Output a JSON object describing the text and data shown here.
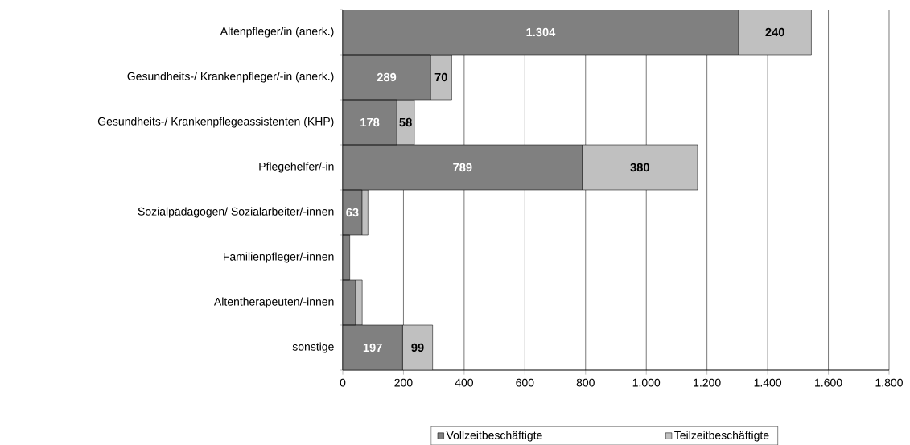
{
  "chart_data": {
    "type": "bar",
    "orientation": "horizontal",
    "stacked": true,
    "categories": [
      "Altenpfleger/in (anerk.)",
      "Gesundheits-/ Krankenpfleger/-in (anerk.)",
      "Gesundheits-/ Krankenpflegeassistenten (KHP)",
      "Pflegehelfer/-in",
      "Sozialpädagogen/    Sozialarbeiter/-innen",
      "Familienpfleger/-innen",
      "Altentherapeuten/-innen",
      "sonstige"
    ],
    "series": [
      {
        "name": "Vollzeitbeschäftigte",
        "color": "#808080",
        "values": [
          1304,
          289,
          178,
          789,
          63,
          23,
          42,
          197
        ],
        "value_labels": [
          "1.304",
          "289",
          "178",
          "789",
          "63",
          null,
          null,
          "197"
        ]
      },
      {
        "name": "Teilzeitbeschäftigte",
        "color": "#c0c0c0",
        "values": [
          240,
          70,
          58,
          380,
          20,
          null,
          22,
          99
        ],
        "value_labels": [
          "240",
          "70",
          "58",
          "380",
          null,
          null,
          null,
          "99"
        ]
      }
    ],
    "xlim": [
      0,
      1800
    ],
    "xticks": [
      0,
      200,
      400,
      600,
      800,
      {
        "value": 1000,
        "label": "1.000"
      },
      {
        "value": 1200,
        "label": "1.200"
      },
      {
        "value": 1400,
        "label": "1.400"
      },
      {
        "value": 1600,
        "label": "1.600"
      },
      {
        "value": 1800,
        "label": "1.800"
      }
    ],
    "grid": "x",
    "legend": "bottom"
  }
}
